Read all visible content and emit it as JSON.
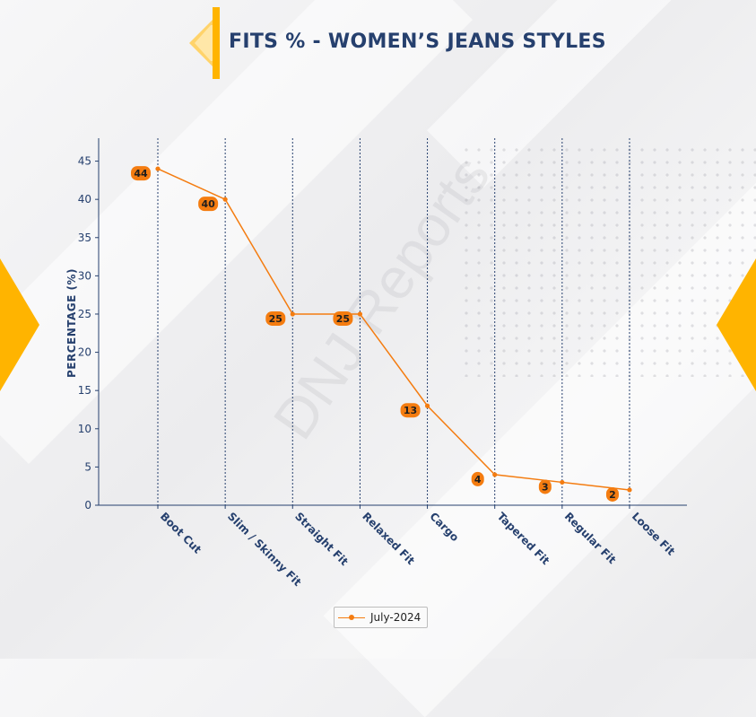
{
  "colors": {
    "accent": "#ffb400",
    "title": "#26406e",
    "line": "#f47c10",
    "label_bubble": "#f47c10"
  },
  "watermark": "DNJ Reports",
  "chart_data": {
    "type": "line",
    "title": "FITS % - WOMEN’S JEANS STYLES",
    "xlabel": "",
    "ylabel": "PERCENTAGE (%)",
    "categories": [
      "Boot Cut",
      "Slim / Skinny Fit",
      "Straight Fit",
      "Relaxed Fit",
      "Cargo",
      "Tapered Fit",
      "Regular Fit",
      "Loose Fit"
    ],
    "series": [
      {
        "name": "July-2024",
        "values": [
          44,
          40,
          25,
          25,
          13,
          4,
          3,
          2
        ]
      }
    ],
    "data_labels": [
      "44",
      "40",
      "25",
      "25",
      "13",
      "4",
      "3",
      "2"
    ],
    "ylim": [
      0,
      48
    ],
    "yticks": [
      0,
      5,
      10,
      15,
      20,
      25,
      30,
      35,
      40,
      45
    ],
    "grid": "vertical dashed at categories",
    "legend_position": "bottom-center"
  }
}
